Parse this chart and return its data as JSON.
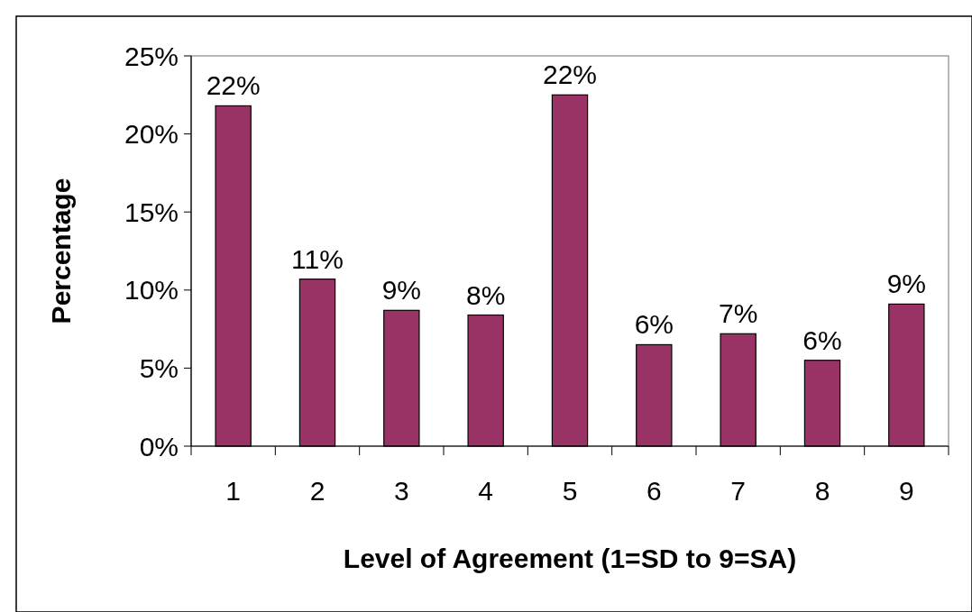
{
  "chart_data": {
    "type": "bar",
    "xlabel": "Level of Agreement (1=SD to 9=SA)",
    "ylabel": "Percentage",
    "categories": [
      "1",
      "2",
      "3",
      "4",
      "5",
      "6",
      "7",
      "8",
      "9"
    ],
    "values": [
      21.8,
      10.7,
      8.7,
      8.4,
      22.5,
      6.5,
      7.2,
      5.5,
      9.1
    ],
    "value_labels": [
      "22%",
      "11%",
      "9%",
      "8%",
      "22%",
      "6%",
      "7%",
      "6%",
      "9%"
    ],
    "color": "#993366",
    "ylim": [
      0,
      25
    ],
    "yticks": [
      {
        "value": 0,
        "label": "0%"
      },
      {
        "value": 5,
        "label": "5%"
      },
      {
        "value": 10,
        "label": "10%"
      },
      {
        "value": 15,
        "label": "15%"
      },
      {
        "value": 20,
        "label": "20%"
      },
      {
        "value": 25,
        "label": "25%"
      }
    ],
    "grid": false
  }
}
